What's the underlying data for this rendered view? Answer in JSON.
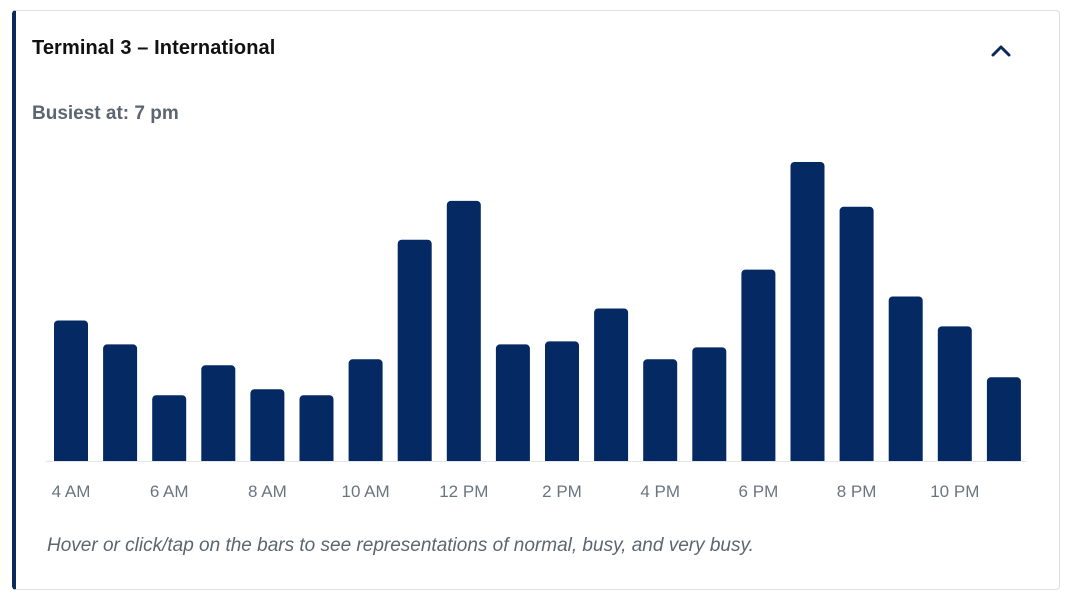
{
  "card": {
    "title": "Terminal 3 – International",
    "busiest_label": "Busiest at: 7 pm",
    "hint": "Hover or click/tap on the bars to see representations of normal, busy, and very busy.",
    "collapse_icon": "chevron-up-icon"
  },
  "colors": {
    "bar": "#052963",
    "accent_border": "#0b2a5c",
    "axis_text": "#6b7580",
    "baseline": "#e3e6ea"
  },
  "chart_data": {
    "type": "bar",
    "title": "",
    "xlabel": "",
    "ylabel": "",
    "categories": [
      "4 AM",
      "5 AM",
      "6 AM",
      "7 AM",
      "8 AM",
      "9 AM",
      "10 AM",
      "11 AM",
      "12 PM",
      "1 PM",
      "2 PM",
      "3 PM",
      "4 PM",
      "5 PM",
      "6 PM",
      "7 PM",
      "8 PM",
      "9 PM",
      "10 PM",
      "11 PM"
    ],
    "tick_labels": [
      "4 AM",
      "",
      "6 AM",
      "",
      "8 AM",
      "",
      "10 AM",
      "",
      "12 PM",
      "",
      "2 PM",
      "",
      "4 PM",
      "",
      "6 PM",
      "",
      "8 PM",
      "",
      "10 PM",
      ""
    ],
    "values": [
      47,
      39,
      22,
      32,
      24,
      22,
      34,
      74,
      87,
      39,
      40,
      51,
      34,
      38,
      64,
      100,
      85,
      55,
      45,
      28
    ],
    "ylim": [
      0,
      100
    ],
    "grid": false,
    "legend": "none"
  }
}
